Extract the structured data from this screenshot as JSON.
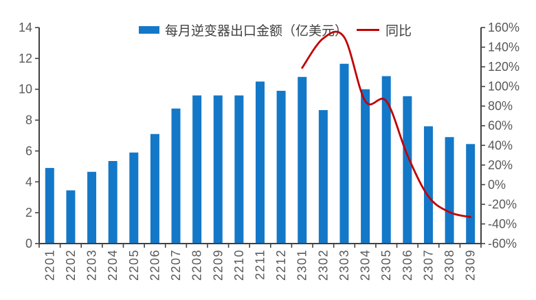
{
  "chart_data": {
    "type": "bar",
    "title": "",
    "categories": [
      "2201",
      "2202",
      "2203",
      "2204",
      "2205",
      "2206",
      "2207",
      "2208",
      "2209",
      "2210",
      "2211",
      "2212",
      "2301",
      "2302",
      "2303",
      "2304",
      "2305",
      "2306",
      "2307",
      "2308",
      "2309"
    ],
    "series": [
      {
        "name": "每月逆变器出口金额（亿美元）",
        "type": "bar",
        "axis": "left",
        "color": "#1478C8",
        "values": [
          4.9,
          3.45,
          4.65,
          5.35,
          5.9,
          7.1,
          8.75,
          9.6,
          9.6,
          9.6,
          10.5,
          9.9,
          10.8,
          8.65,
          11.65,
          10.0,
          10.85,
          9.55,
          7.6,
          6.9,
          6.45
        ]
      },
      {
        "name": "同比",
        "type": "line",
        "axis": "right",
        "color": "#C00000",
        "smooth": true,
        "values": [
          null,
          null,
          null,
          null,
          null,
          null,
          null,
          null,
          null,
          null,
          null,
          null,
          119,
          149,
          150,
          85,
          85,
          30,
          -12,
          -28,
          -33
        ]
      }
    ],
    "left_axis": {
      "min": 0,
      "max": 14,
      "step": 2,
      "ticks": [
        "0",
        "2",
        "4",
        "6",
        "8",
        "10",
        "12",
        "14"
      ]
    },
    "right_axis": {
      "min": -60,
      "max": 160,
      "step": 20,
      "format": "percent",
      "ticks": [
        "-60%",
        "-40%",
        "-20%",
        "0%",
        "20%",
        "40%",
        "60%",
        "80%",
        "100%",
        "120%",
        "140%",
        "160%"
      ]
    },
    "legend_position": "top",
    "grid": false,
    "axis_color": "#404040",
    "tick_label_color": "#595959"
  }
}
